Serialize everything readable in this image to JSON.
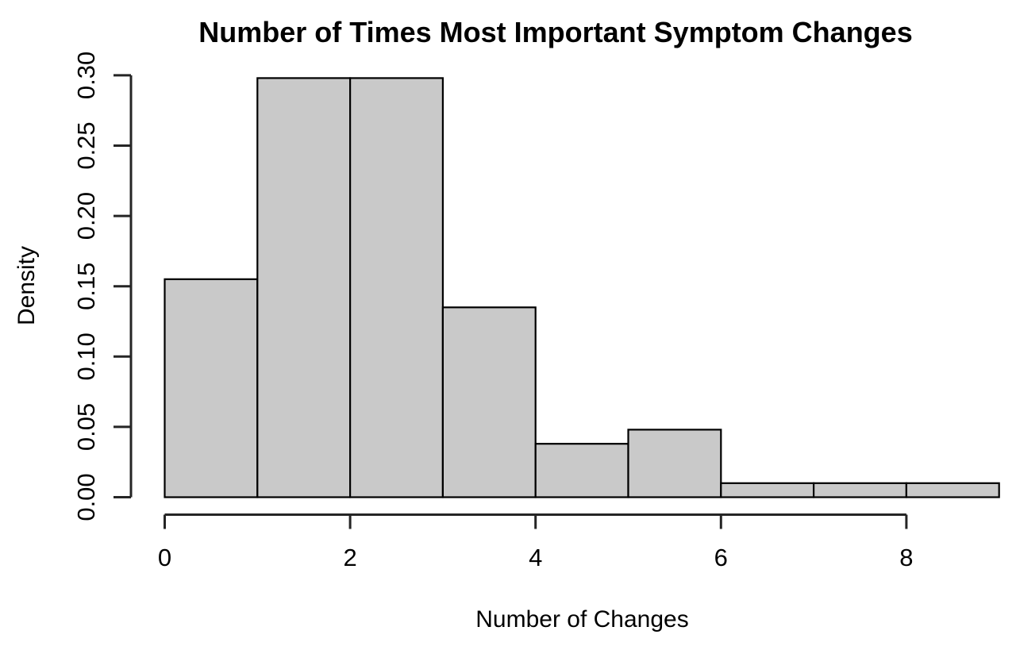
{
  "chart_data": {
    "type": "bar",
    "subtype": "histogram",
    "title": "Number of Times Most Important Symptom Changes",
    "xlabel": "Number of Changes",
    "ylabel": "Density",
    "bin_width": 1,
    "bin_edges": [
      0,
      1,
      2,
      3,
      4,
      5,
      6,
      7,
      8,
      9
    ],
    "densities": [
      0.155,
      0.298,
      0.298,
      0.135,
      0.038,
      0.048,
      0.01,
      0.01,
      0.01
    ],
    "xlim": [
      0,
      9
    ],
    "ylim": [
      0,
      0.3
    ],
    "x_ticks": [
      {
        "value": 0,
        "label": "0"
      },
      {
        "value": 2,
        "label": "2"
      },
      {
        "value": 4,
        "label": "4"
      },
      {
        "value": 6,
        "label": "6"
      },
      {
        "value": 8,
        "label": "8"
      }
    ],
    "y_ticks": [
      {
        "value": 0.0,
        "label": "0.00"
      },
      {
        "value": 0.05,
        "label": "0.05"
      },
      {
        "value": 0.1,
        "label": "0.10"
      },
      {
        "value": 0.15,
        "label": "0.15"
      },
      {
        "value": 0.2,
        "label": "0.20"
      },
      {
        "value": 0.25,
        "label": "0.25"
      },
      {
        "value": 0.3,
        "label": "0.30"
      }
    ],
    "y_tick_labels_rotated": true,
    "grid": false,
    "legend_position": "none",
    "colors": {
      "background": "#ffffff",
      "bar_fill": "#c9c9c9",
      "bar_stroke": "#000000",
      "axis": "#252525",
      "text": "#000000"
    }
  }
}
